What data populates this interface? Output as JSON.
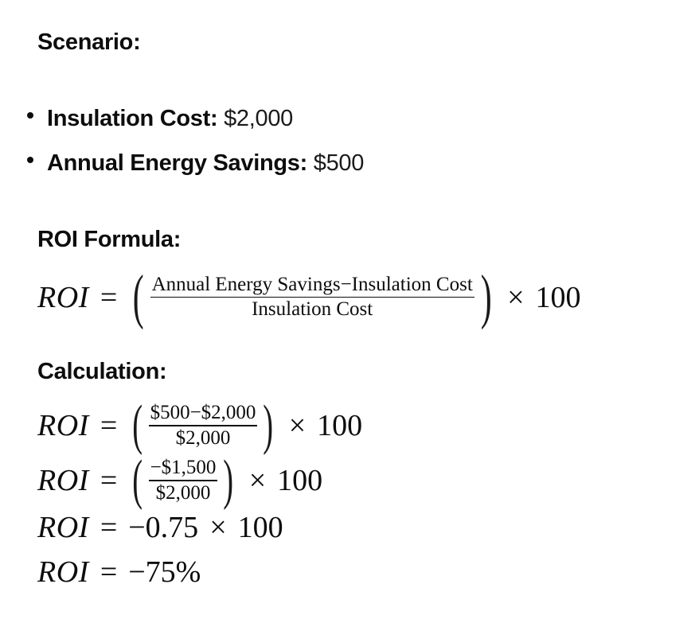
{
  "scenario": {
    "heading": "Scenario:",
    "items": [
      {
        "label": "Insulation Cost:",
        "value": "$2,000"
      },
      {
        "label": "Annual Energy Savings:",
        "value": "$500"
      }
    ]
  },
  "formula": {
    "heading": "ROI Formula:",
    "lhs": "ROI",
    "eq": "=",
    "numerator": "Annual Energy Savings−Insulation Cost",
    "denominator": "Insulation Cost",
    "times": "×",
    "multiplier": "100"
  },
  "calculation": {
    "heading": "Calculation:",
    "step1": {
      "lhs": "ROI",
      "eq": "=",
      "numerator": "$500−$2,000",
      "denominator": "$2,000",
      "times": "×",
      "multiplier": "100"
    },
    "step2": {
      "lhs": "ROI",
      "eq": "=",
      "numerator": "−$1,500",
      "denominator": "$2,000",
      "times": "×",
      "multiplier": "100"
    },
    "step3": {
      "lhs": "ROI",
      "eq": "=",
      "rhs": "−0.75",
      "times": "×",
      "multiplier": "100"
    },
    "step4": {
      "lhs": "ROI",
      "eq": "=",
      "rhs": "−75%"
    }
  }
}
